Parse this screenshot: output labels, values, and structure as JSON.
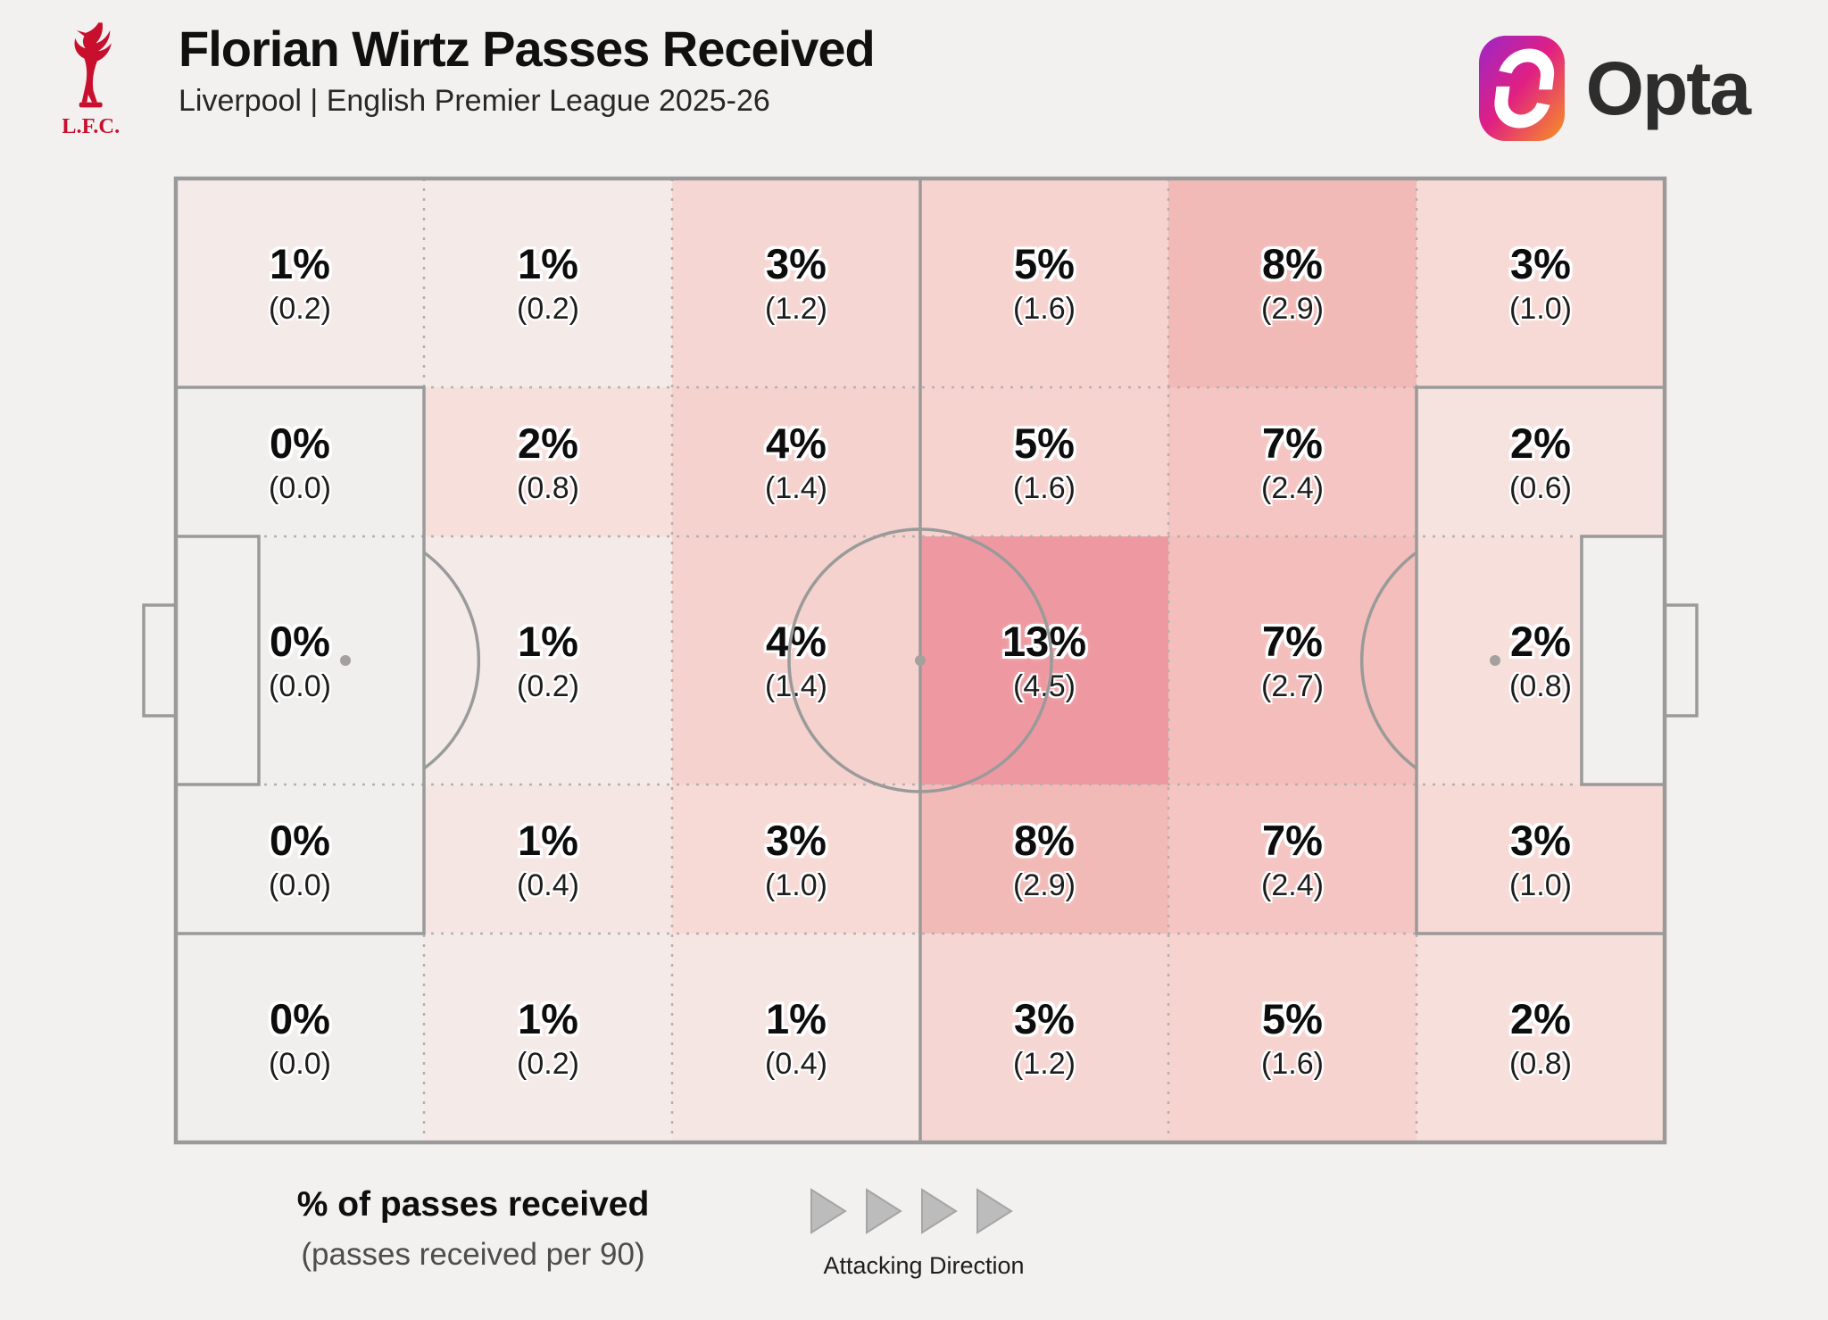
{
  "header": {
    "title": "Florian Wirtz Passes Received",
    "subtitle": "Liverpool | English Premier League 2025-26",
    "crest_label": "L.F.C.",
    "opta_label": "Opta"
  },
  "legend": {
    "primary": "% of passes received",
    "secondary": "(passes received per 90)",
    "attacking_label": "Attacking Direction"
  },
  "colors": {
    "background": "#f2f1f0",
    "pitch_line_solid": "#9a9a9a",
    "pitch_line_dotted": "#b5b0ae",
    "pitch_fill_neutral": "#f1f0ef",
    "heat_min": "#f1efee",
    "heat_max": "#ee99a1",
    "value_text": "#0d0d0d",
    "lfc_red": "#c8102e",
    "arrow_fill": "#bcbcbc",
    "arrow_stroke": "#a5a5a5",
    "opta_gradient_start": "#9b27c9",
    "opta_gradient_mid": "#e01f83",
    "opta_gradient_end": "#f79422"
  },
  "chart_data": {
    "type": "heatmap",
    "title": "Florian Wirtz Passes Received",
    "subtitle": "Liverpool | English Premier League 2025-26",
    "rows": 5,
    "cols": 6,
    "attacking_direction": "left-to-right",
    "value_unit": "% of passes received",
    "secondary_unit": "passes received per 90",
    "zones": [
      [
        {
          "pct": 1,
          "per90": 0.2,
          "pct_label": "1%",
          "per90_label": "(0.2)",
          "color": "#f4ebe9"
        },
        {
          "pct": 1,
          "per90": 0.2,
          "pct_label": "1%",
          "per90_label": "(0.2)",
          "color": "#f4ebe9"
        },
        {
          "pct": 3,
          "per90": 1.2,
          "pct_label": "3%",
          "per90_label": "(1.2)",
          "color": "#f6d6d2"
        },
        {
          "pct": 5,
          "per90": 1.6,
          "pct_label": "5%",
          "per90_label": "(1.6)",
          "color": "#f6d3cf"
        },
        {
          "pct": 8,
          "per90": 2.9,
          "pct_label": "8%",
          "per90_label": "(2.9)",
          "color": "#f2bab7"
        },
        {
          "pct": 3,
          "per90": 1.0,
          "pct_label": "3%",
          "per90_label": "(1.0)",
          "color": "#f7dad6"
        }
      ],
      [
        {
          "pct": 0,
          "per90": 0.0,
          "pct_label": "0%",
          "per90_label": "(0.0)",
          "color": "#f1efee"
        },
        {
          "pct": 2,
          "per90": 0.8,
          "pct_label": "2%",
          "per90_label": "(0.8)",
          "color": "#f7dfdc"
        },
        {
          "pct": 4,
          "per90": 1.4,
          "pct_label": "4%",
          "per90_label": "(1.4)",
          "color": "#f5d2ce"
        },
        {
          "pct": 5,
          "per90": 1.6,
          "pct_label": "5%",
          "per90_label": "(1.6)",
          "color": "#f6d3cf"
        },
        {
          "pct": 7,
          "per90": 2.4,
          "pct_label": "7%",
          "per90_label": "(2.4)",
          "color": "#f4c5c2"
        },
        {
          "pct": 2,
          "per90": 0.6,
          "pct_label": "2%",
          "per90_label": "(0.6)",
          "color": "#f6e2df"
        }
      ],
      [
        {
          "pct": 0,
          "per90": 0.0,
          "pct_label": "0%",
          "per90_label": "(0.0)",
          "color": "#f1efee"
        },
        {
          "pct": 1,
          "per90": 0.2,
          "pct_label": "1%",
          "per90_label": "(0.2)",
          "color": "#f4ebe9"
        },
        {
          "pct": 4,
          "per90": 1.4,
          "pct_label": "4%",
          "per90_label": "(1.4)",
          "color": "#f5d2ce"
        },
        {
          "pct": 13,
          "per90": 4.5,
          "pct_label": "13%",
          "per90_label": "(4.5)",
          "color": "#ee99a1"
        },
        {
          "pct": 7,
          "per90": 2.7,
          "pct_label": "7%",
          "per90_label": "(2.7)",
          "color": "#f3bebb"
        },
        {
          "pct": 2,
          "per90": 0.8,
          "pct_label": "2%",
          "per90_label": "(0.8)",
          "color": "#f7dfdc"
        }
      ],
      [
        {
          "pct": 0,
          "per90": 0.0,
          "pct_label": "0%",
          "per90_label": "(0.0)",
          "color": "#f1efee"
        },
        {
          "pct": 1,
          "per90": 0.4,
          "pct_label": "1%",
          "per90_label": "(0.4)",
          "color": "#f5e6e3"
        },
        {
          "pct": 3,
          "per90": 1.0,
          "pct_label": "3%",
          "per90_label": "(1.0)",
          "color": "#f7dad6"
        },
        {
          "pct": 8,
          "per90": 2.9,
          "pct_label": "8%",
          "per90_label": "(2.9)",
          "color": "#f2bab7"
        },
        {
          "pct": 7,
          "per90": 2.4,
          "pct_label": "7%",
          "per90_label": "(2.4)",
          "color": "#f4c5c2"
        },
        {
          "pct": 3,
          "per90": 1.0,
          "pct_label": "3%",
          "per90_label": "(1.0)",
          "color": "#f7dad6"
        }
      ],
      [
        {
          "pct": 0,
          "per90": 0.0,
          "pct_label": "0%",
          "per90_label": "(0.0)",
          "color": "#f1efee"
        },
        {
          "pct": 1,
          "per90": 0.2,
          "pct_label": "1%",
          "per90_label": "(0.2)",
          "color": "#f4ebe9"
        },
        {
          "pct": 1,
          "per90": 0.4,
          "pct_label": "1%",
          "per90_label": "(0.4)",
          "color": "#f5e6e3"
        },
        {
          "pct": 3,
          "per90": 1.2,
          "pct_label": "3%",
          "per90_label": "(1.2)",
          "color": "#f6d6d2"
        },
        {
          "pct": 5,
          "per90": 1.6,
          "pct_label": "5%",
          "per90_label": "(1.6)",
          "color": "#f6d3cf"
        },
        {
          "pct": 2,
          "per90": 0.8,
          "pct_label": "2%",
          "per90_label": "(0.8)",
          "color": "#f7dfdc"
        }
      ]
    ]
  }
}
